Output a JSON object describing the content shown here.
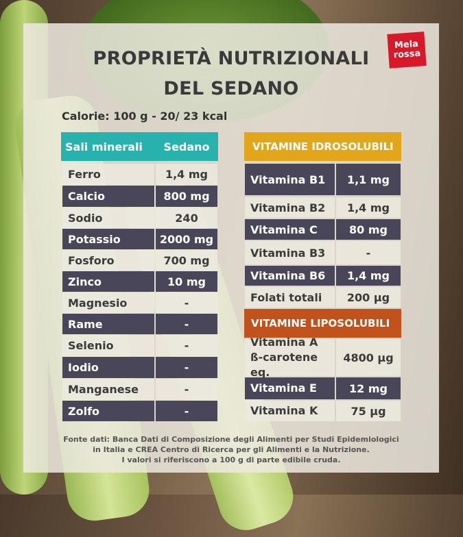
{
  "brand": {
    "line1": "Mela",
    "line2": "rossa"
  },
  "title": {
    "line1": "PROPRIETÀ NUTRIZIONALI",
    "line2": "DEL SEDANO"
  },
  "calories": "Calorie: 100 g - 20/ 23 kcal",
  "minerals": {
    "header_label": "Sali minerali",
    "header_value": "Sedano",
    "rows": [
      {
        "name": "Ferro",
        "value": "1,4 mg"
      },
      {
        "name": "Calcio",
        "value": "800 mg"
      },
      {
        "name": "Sodio",
        "value": "240"
      },
      {
        "name": "Potassio",
        "value": "2000 mg"
      },
      {
        "name": "Fosforo",
        "value": "700 mg"
      },
      {
        "name": "Zinco",
        "value": "10  mg"
      },
      {
        "name": "Magnesio",
        "value": "-"
      },
      {
        "name": "Rame",
        "value": "-"
      },
      {
        "name": "Selenio",
        "value": "-"
      },
      {
        "name": "Iodio",
        "value": "-"
      },
      {
        "name": "Manganese",
        "value": "-"
      },
      {
        "name": "Zolfo",
        "value": "-"
      }
    ]
  },
  "vitamins_water": {
    "header": "VITAMINE IDROSOLUBILI",
    "rows": [
      {
        "name": "Vitamina B1",
        "value": "1,1 mg"
      },
      {
        "name": "Vitamina B2",
        "value": "1,4 mg"
      },
      {
        "name": "Vitamina C",
        "value": "80 mg"
      },
      {
        "name": "Vitamina B3",
        "value": "-"
      },
      {
        "name": "Vitamina B6",
        "value": "1,4 mg"
      },
      {
        "name": "Folati totali",
        "value": "200 µg"
      }
    ]
  },
  "vitamins_fat": {
    "header": "VITAMINE LIPOSOLUBILI",
    "rows": [
      {
        "name": "Vitamina A",
        "name2": "ß-carotene eq.",
        "value": "4800 µg"
      },
      {
        "name": "Vitamina E",
        "value": "12 mg"
      },
      {
        "name": "Vitamina K",
        "value": "75 µg"
      }
    ]
  },
  "footnote": {
    "line1": "Fonte dati: Banca Dati di Composizione degli Alimenti per Studi Epidemiologici",
    "line2": "in Italia e CREA Centro di Ricerca per gli Alimenti e la Nutrizione.",
    "line3": "I valori si riferiscono a 100 g di parte edibile cruda."
  },
  "colors": {
    "teal_header": "#27b2ad",
    "dark_row": "#4a4659",
    "yellow_header": "#e2a61b",
    "orange_header": "#c1521b",
    "brand_red": "#d7192a"
  }
}
